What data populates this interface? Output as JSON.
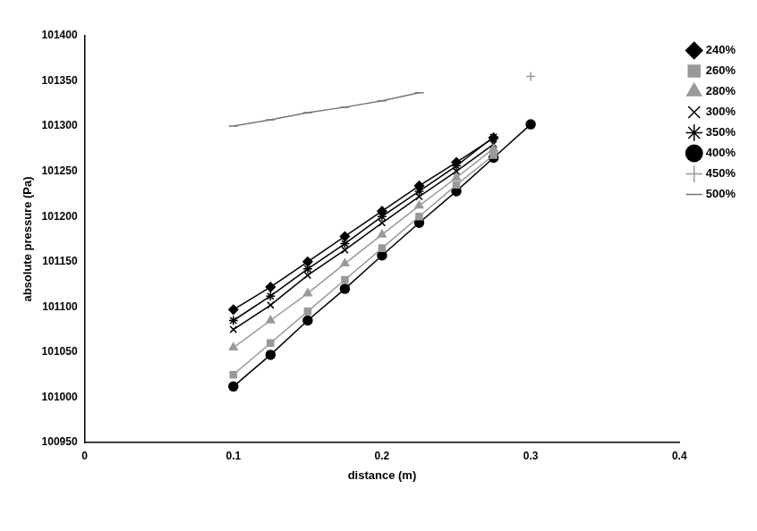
{
  "chart_data": {
    "type": "line",
    "x_label": "distance (m)",
    "y_label": "absolute pressure (Pa)",
    "x": [
      0.1,
      0.125,
      0.15,
      0.175,
      0.2,
      0.225,
      0.25,
      0.275,
      0.3
    ],
    "xlim": [
      0,
      0.4
    ],
    "xticks": [
      0,
      0.1,
      0.2,
      0.3,
      0.4
    ],
    "ylim": [
      100950,
      101400
    ],
    "yticks": [
      100950,
      101000,
      101050,
      101100,
      101150,
      101200,
      101250,
      101300,
      101350,
      101400
    ],
    "grid": false,
    "legend": "right",
    "series": [
      {
        "name": "240%",
        "color": "#000000",
        "marker": "diamond",
        "values": [
          101097,
          101122,
          101150,
          101178,
          101206,
          101234,
          101260,
          101287,
          null
        ]
      },
      {
        "name": "260%",
        "color": "#999999",
        "marker": "square",
        "values": [
          101025,
          101060,
          101095,
          101130,
          101165,
          101200,
          101235,
          101268,
          null
        ]
      },
      {
        "name": "280%",
        "color": "#999999",
        "marker": "triangle",
        "values": [
          101055,
          101085,
          101115,
          101148,
          101180,
          101212,
          101243,
          101275,
          null
        ]
      },
      {
        "name": "300%",
        "color": "#000000",
        "marker": "x",
        "values": [
          101075,
          101102,
          101135,
          101163,
          101193,
          101222,
          101250,
          101280,
          null
        ]
      },
      {
        "name": "350%",
        "color": "#000000",
        "marker": "asterisk",
        "values": [
          101085,
          101112,
          101142,
          101170,
          101200,
          101228,
          101256,
          101288,
          null
        ]
      },
      {
        "name": "400%",
        "color": "#000000",
        "marker": "circle",
        "values": [
          101012,
          101047,
          101085,
          101120,
          101157,
          101193,
          101228,
          101265,
          101302
        ]
      },
      {
        "name": "450%",
        "color": "#999999",
        "marker": "plus",
        "values": [
          null,
          null,
          null,
          null,
          null,
          null,
          null,
          null,
          101355
        ]
      },
      {
        "name": "500%",
        "color": "#777777",
        "marker": "dash",
        "values": [
          101300,
          101307,
          101315,
          101321,
          101328,
          101337,
          null,
          null,
          null
        ]
      }
    ]
  }
}
